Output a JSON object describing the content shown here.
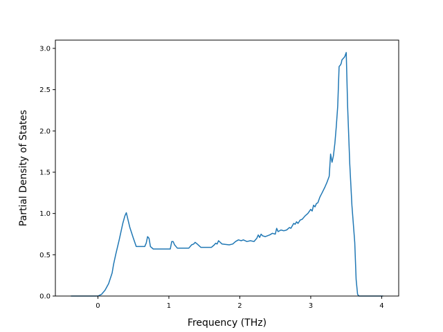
{
  "chart_data": {
    "type": "line",
    "title": "",
    "xlabel": "Frequency (THz)",
    "ylabel": "Partial Density of States",
    "xlim": [
      -0.6,
      4.24
    ],
    "ylim": [
      0.0,
      3.1
    ],
    "xticks": [
      0,
      1,
      2,
      3,
      4
    ],
    "yticks": [
      0.0,
      0.5,
      1.0,
      1.5,
      2.0,
      2.5,
      3.0
    ],
    "xtick_labels": [
      "0",
      "1",
      "2",
      "3",
      "4"
    ],
    "ytick_labels": [
      "0.0",
      "0.5",
      "1.0",
      "1.5",
      "2.0",
      "2.5",
      "3.0"
    ],
    "grid": false,
    "line_color": "#1f77b4",
    "series": [
      {
        "x": [
          -0.38,
          0.0,
          0.05,
          0.1,
          0.15,
          0.2,
          0.22,
          0.25,
          0.3,
          0.35,
          0.38,
          0.4,
          0.45,
          0.5,
          0.54,
          0.6,
          0.66,
          0.68,
          0.7,
          0.72,
          0.74,
          0.78,
          0.85,
          0.95,
          1.02,
          1.04,
          1.06,
          1.08,
          1.12,
          1.2,
          1.28,
          1.32,
          1.35,
          1.37,
          1.4,
          1.45,
          1.55,
          1.6,
          1.64,
          1.66,
          1.68,
          1.7,
          1.75,
          1.85,
          1.9,
          1.94,
          1.98,
          2.02,
          2.05,
          2.1,
          2.15,
          2.2,
          2.24,
          2.26,
          2.28,
          2.3,
          2.32,
          2.36,
          2.42,
          2.46,
          2.5,
          2.52,
          2.54,
          2.58,
          2.62,
          2.66,
          2.7,
          2.72,
          2.74,
          2.76,
          2.78,
          2.8,
          2.82,
          2.85,
          2.88,
          2.92,
          2.96,
          3.0,
          3.02,
          3.04,
          3.06,
          3.08,
          3.1,
          3.13,
          3.16,
          3.2,
          3.23,
          3.26,
          3.28,
          3.3,
          3.32,
          3.34,
          3.36,
          3.38,
          3.4,
          3.42,
          3.43,
          3.44,
          3.46,
          3.48,
          3.5,
          3.52,
          3.55,
          3.58,
          3.62,
          3.64,
          3.66,
          3.68,
          3.75,
          4.02
        ],
        "y": [
          0.0,
          0.0,
          0.02,
          0.07,
          0.15,
          0.28,
          0.38,
          0.5,
          0.68,
          0.88,
          0.97,
          1.01,
          0.83,
          0.7,
          0.6,
          0.6,
          0.6,
          0.64,
          0.72,
          0.7,
          0.6,
          0.57,
          0.57,
          0.57,
          0.57,
          0.66,
          0.66,
          0.62,
          0.58,
          0.58,
          0.58,
          0.62,
          0.63,
          0.65,
          0.63,
          0.59,
          0.59,
          0.59,
          0.62,
          0.64,
          0.63,
          0.67,
          0.63,
          0.62,
          0.63,
          0.66,
          0.68,
          0.67,
          0.68,
          0.66,
          0.67,
          0.66,
          0.7,
          0.74,
          0.71,
          0.75,
          0.73,
          0.72,
          0.74,
          0.76,
          0.75,
          0.82,
          0.78,
          0.8,
          0.79,
          0.8,
          0.83,
          0.82,
          0.85,
          0.88,
          0.87,
          0.9,
          0.88,
          0.92,
          0.93,
          0.97,
          1.0,
          1.05,
          1.03,
          1.1,
          1.08,
          1.12,
          1.13,
          1.2,
          1.25,
          1.32,
          1.38,
          1.45,
          1.72,
          1.62,
          1.7,
          1.85,
          2.05,
          2.3,
          2.78,
          2.8,
          2.82,
          2.86,
          2.88,
          2.9,
          2.95,
          2.3,
          1.6,
          1.1,
          0.65,
          0.2,
          0.02,
          0.0,
          0.0,
          0.0
        ]
      }
    ]
  }
}
